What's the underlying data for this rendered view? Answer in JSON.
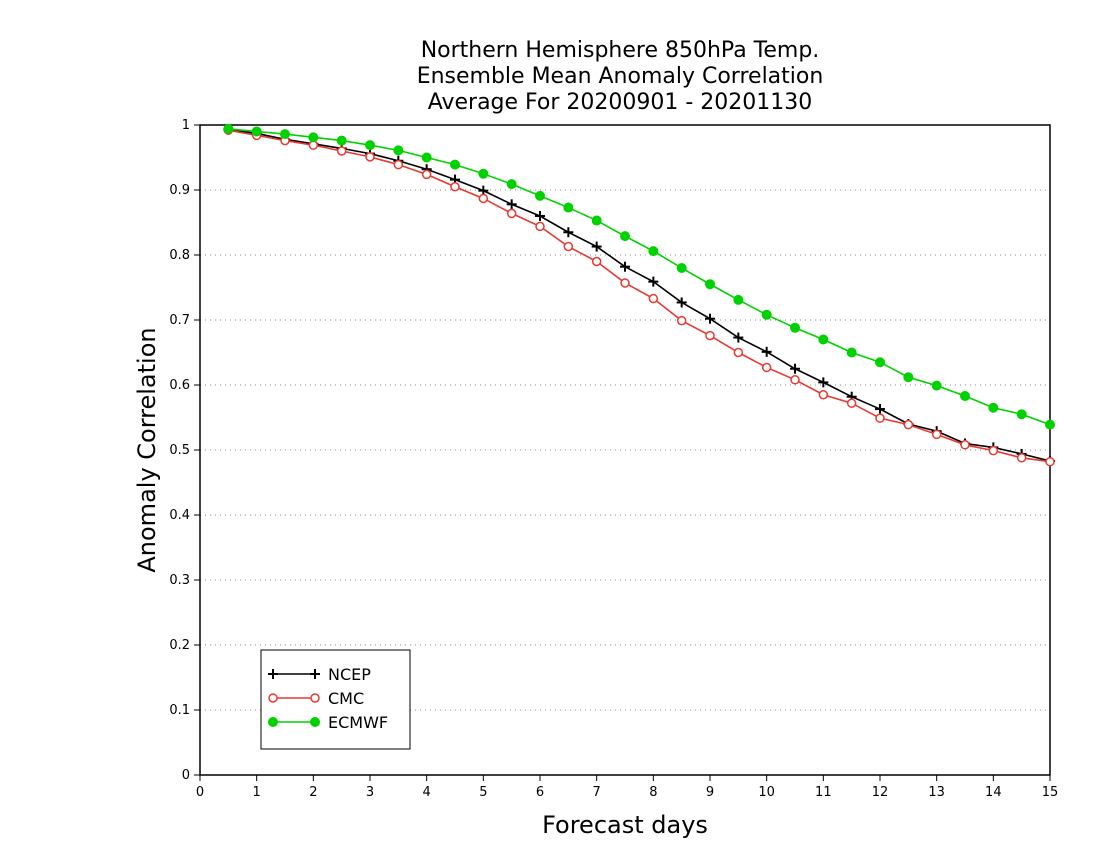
{
  "chart_data": {
    "type": "line",
    "title_lines": [
      "Northern Hemisphere 850hPa Temp.",
      "Ensemble Mean Anomaly Correlation",
      "Average For 20200901 - 20201130"
    ],
    "xlabel": "Forecast days",
    "ylabel": "Anomaly Correlation",
    "xlim": [
      0,
      15
    ],
    "ylim": [
      0,
      1
    ],
    "xticks": [
      "0",
      "1",
      "2",
      "3",
      "4",
      "5",
      "6",
      "7",
      "8",
      "9",
      "10",
      "11",
      "12",
      "13",
      "14",
      "15"
    ],
    "yticks": [
      "0",
      "0.1",
      "0.2",
      "0.3",
      "0.4",
      "0.5",
      "0.6",
      "0.7",
      "0.8",
      "0.9",
      "1"
    ],
    "grid": "horizontal dotted",
    "legend_position": "bottom-left",
    "x": [
      0.5,
      1,
      1.5,
      2,
      2.5,
      3,
      3.5,
      4,
      4.5,
      5,
      5.5,
      6,
      6.5,
      7,
      7.5,
      8,
      8.5,
      9,
      9.5,
      10,
      10.5,
      11,
      11.5,
      12,
      12.5,
      13,
      13.5,
      14,
      14.5,
      15
    ],
    "series": [
      {
        "name": "NCEP",
        "color": "#000000",
        "marker": "plus",
        "values": [
          0.993,
          0.987,
          0.978,
          0.971,
          0.964,
          0.956,
          0.945,
          0.932,
          0.916,
          0.899,
          0.878,
          0.86,
          0.835,
          0.813,
          0.782,
          0.759,
          0.727,
          0.702,
          0.673,
          0.651,
          0.625,
          0.604,
          0.582,
          0.563,
          0.54,
          0.529,
          0.51,
          0.504,
          0.494,
          0.483
        ]
      },
      {
        "name": "CMC",
        "color": "#e8382f",
        "marker": "open-circle",
        "values": [
          0.992,
          0.984,
          0.976,
          0.969,
          0.96,
          0.951,
          0.939,
          0.924,
          0.905,
          0.887,
          0.864,
          0.844,
          0.813,
          0.79,
          0.757,
          0.733,
          0.699,
          0.676,
          0.65,
          0.627,
          0.608,
          0.585,
          0.572,
          0.549,
          0.539,
          0.524,
          0.508,
          0.499,
          0.488,
          0.482
        ]
      },
      {
        "name": "ECMWF",
        "color": "#00d200",
        "marker": "filled-circle",
        "values": [
          0.994,
          0.99,
          0.986,
          0.981,
          0.976,
          0.969,
          0.961,
          0.95,
          0.939,
          0.925,
          0.909,
          0.891,
          0.873,
          0.853,
          0.829,
          0.806,
          0.78,
          0.755,
          0.731,
          0.708,
          0.688,
          0.67,
          0.65,
          0.635,
          0.612,
          0.599,
          0.583,
          0.565,
          0.555,
          0.539
        ]
      }
    ]
  }
}
